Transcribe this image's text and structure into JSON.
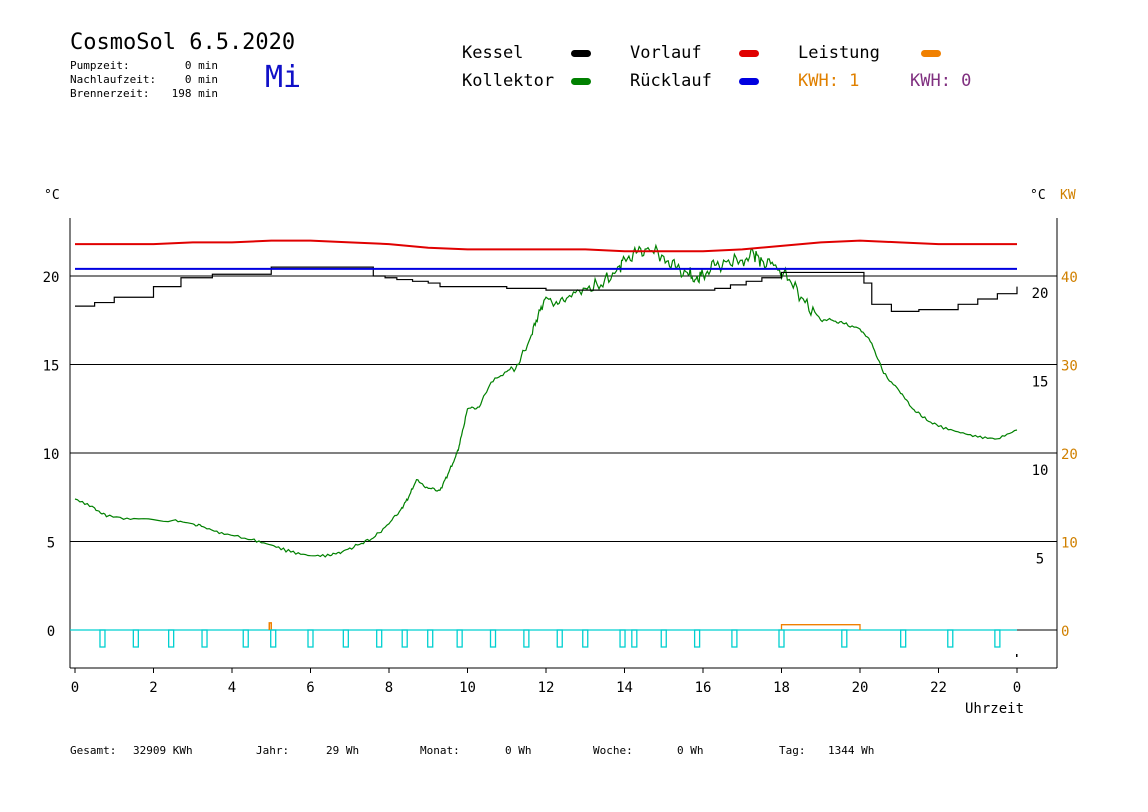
{
  "header": {
    "title": "CosmoSol 6.5.2020",
    "day": "Mi",
    "stats": [
      {
        "label": "Pumpzeit:",
        "value": "0 min"
      },
      {
        "label": "Nachlaufzeit:",
        "value": "0 min"
      },
      {
        "label": "Brennerzeit:",
        "value": "198 min"
      }
    ]
  },
  "legend": {
    "kessel": {
      "label": "Kessel",
      "color": "#000000"
    },
    "vorlauf": {
      "label": "Vorlauf",
      "color": "#e00000"
    },
    "leistung": {
      "label": "Leistung",
      "color": "#f08000"
    },
    "kollektor": {
      "label": "Kollektor",
      "color": "#008000"
    },
    "ruecklauf": {
      "label": "Rücklauf",
      "color": "#0000e0"
    },
    "kwh1": "KWH: 1",
    "kwh2": "KWH: 0",
    "kwh1_color": "#e08000",
    "kwh2_color": "#803080"
  },
  "axes": {
    "left_unit": "°C",
    "right_unit_c": "°C",
    "right_unit_kw": "KW",
    "xlabel": "Uhrzeit",
    "kw_color": "#d08000"
  },
  "footer": [
    {
      "label": "Gesamt:",
      "value": "32909 KWh"
    },
    {
      "label": "Jahr:",
      "value": "29 Wh"
    },
    {
      "label": "Monat:",
      "value": "0 Wh"
    },
    {
      "label": "Woche:",
      "value": "0 Wh"
    },
    {
      "label": "Tag:",
      "value": "1344 Wh"
    }
  ],
  "chart_data": {
    "type": "line",
    "title": "CosmoSol 6.5.2020",
    "xlabel": "Uhrzeit",
    "ylabel": "°C",
    "xlim": [
      0,
      24
    ],
    "ylim": [
      -1.5,
      23
    ],
    "x_ticks": [
      "0",
      "2",
      "4",
      "6",
      "8",
      "10",
      "12",
      "14",
      "16",
      "18",
      "20",
      "22",
      "0"
    ],
    "y_ticks_left": [
      "0",
      "5",
      "10",
      "15",
      "20"
    ],
    "y_ticks_right_c": [
      "5",
      "10",
      "15",
      "20"
    ],
    "y_ticks_right_kw": [
      "0",
      "10",
      "20",
      "30",
      "40"
    ],
    "kw_scale": "KW = 2 × °C",
    "grid": "horizontal at 5, 10, 15, 20 °C",
    "series": [
      {
        "name": "Kollektor",
        "color": "#008000",
        "x": [
          0,
          0.5,
          0.8,
          1.5,
          2.5,
          3.0,
          3.3,
          3.8,
          4.5,
          5.0,
          5.5,
          6.0,
          6.5,
          6.8,
          7.2,
          7.6,
          8.0,
          8.3,
          8.5,
          8.7,
          9.0,
          9.3,
          9.5,
          9.7,
          9.8,
          10.0,
          10.3,
          10.6,
          11.0,
          11.3,
          11.6,
          11.8,
          12.0,
          12.3,
          12.6,
          13.0,
          13.4,
          13.8,
          14.0,
          14.3,
          14.6,
          15.0,
          15.3,
          15.6,
          15.8,
          16.0,
          16.3,
          16.6,
          17.0,
          17.3,
          17.5,
          17.8,
          18.2,
          18.6,
          19.0,
          19.3,
          19.6,
          20.0,
          20.3,
          20.6,
          21.0,
          21.3,
          21.6,
          22.0,
          22.5,
          23.0,
          23.5,
          24.0
        ],
        "values": [
          7.4,
          6.9,
          6.4,
          6.3,
          6.2,
          6.0,
          5.8,
          5.4,
          5.1,
          4.8,
          4.4,
          4.2,
          4.2,
          4.4,
          4.8,
          5.2,
          6.0,
          6.8,
          7.5,
          8.5,
          8.0,
          7.9,
          8.8,
          9.8,
          10.5,
          12.5,
          12.6,
          14.0,
          14.6,
          15.0,
          16.5,
          17.8,
          18.8,
          18.4,
          18.9,
          19.3,
          19.5,
          20.3,
          21.0,
          21.3,
          21.6,
          21.1,
          20.5,
          20.2,
          19.8,
          20.1,
          20.6,
          20.8,
          20.9,
          21.2,
          20.9,
          20.6,
          19.8,
          18.5,
          17.5,
          17.5,
          17.3,
          17.0,
          16.2,
          14.5,
          13.5,
          12.6,
          12.0,
          11.5,
          11.2,
          10.9,
          10.8,
          11.3
        ]
      },
      {
        "name": "Kessel",
        "color": "#000000",
        "x": [
          0,
          0.5,
          1.0,
          2.0,
          2.7,
          3.5,
          4.5,
          5.0,
          7.5,
          7.6,
          7.9,
          8.2,
          8.6,
          9.0,
          9.3,
          10.5,
          11.0,
          12.0,
          13.0,
          15.0,
          15.8,
          16.3,
          16.7,
          17.1,
          17.5,
          18.0,
          20.0,
          20.1,
          20.3,
          20.8,
          21.5,
          22.5,
          23.0,
          23.5,
          24.0
        ],
        "values": [
          18.3,
          18.5,
          18.8,
          19.4,
          19.9,
          20.1,
          20.1,
          20.5,
          20.5,
          20.0,
          19.9,
          19.8,
          19.7,
          19.6,
          19.4,
          19.4,
          19.3,
          19.2,
          19.2,
          19.2,
          19.2,
          19.3,
          19.5,
          19.7,
          19.9,
          20.2,
          20.2,
          19.6,
          18.4,
          18.0,
          18.1,
          18.4,
          18.7,
          19.0,
          19.4
        ]
      },
      {
        "name": "Vorlauf",
        "color": "#e00000",
        "x": [
          0,
          1.0,
          2.0,
          3.0,
          4.0,
          5.0,
          6.0,
          7.0,
          8.0,
          9.0,
          10.0,
          11.0,
          12.0,
          13.0,
          14.0,
          15.0,
          16.0,
          17.0,
          18.0,
          19.0,
          20.0,
          21.0,
          22.0,
          23.0,
          24.0
        ],
        "values": [
          21.8,
          21.8,
          21.8,
          21.9,
          21.9,
          22.0,
          22.0,
          21.9,
          21.8,
          21.6,
          21.5,
          21.5,
          21.5,
          21.5,
          21.4,
          21.4,
          21.4,
          21.5,
          21.7,
          21.9,
          22.0,
          21.9,
          21.8,
          21.8,
          21.8
        ]
      },
      {
        "name": "Rücklauf",
        "color": "#0000e0",
        "x": [
          0,
          24
        ],
        "values": [
          20.4,
          20.4
        ]
      }
    ],
    "leistung": {
      "name": "Leistung",
      "color": "#f08000",
      "x": [
        4.95,
        5.0,
        18.0,
        18.02,
        20.0,
        20.02
      ],
      "values": [
        0.25,
        0.0,
        0.0,
        0.2,
        0.2,
        0.0
      ]
    },
    "pump_pulses_hours": [
      0.7,
      1.55,
      2.45,
      3.3,
      4.35,
      5.05,
      6.0,
      6.9,
      7.75,
      8.4,
      9.05,
      9.8,
      10.65,
      11.5,
      12.35,
      13.0,
      13.95,
      14.25,
      15.0,
      15.85,
      16.8,
      18.0,
      19.6,
      21.1,
      22.3,
      23.5
    ]
  }
}
